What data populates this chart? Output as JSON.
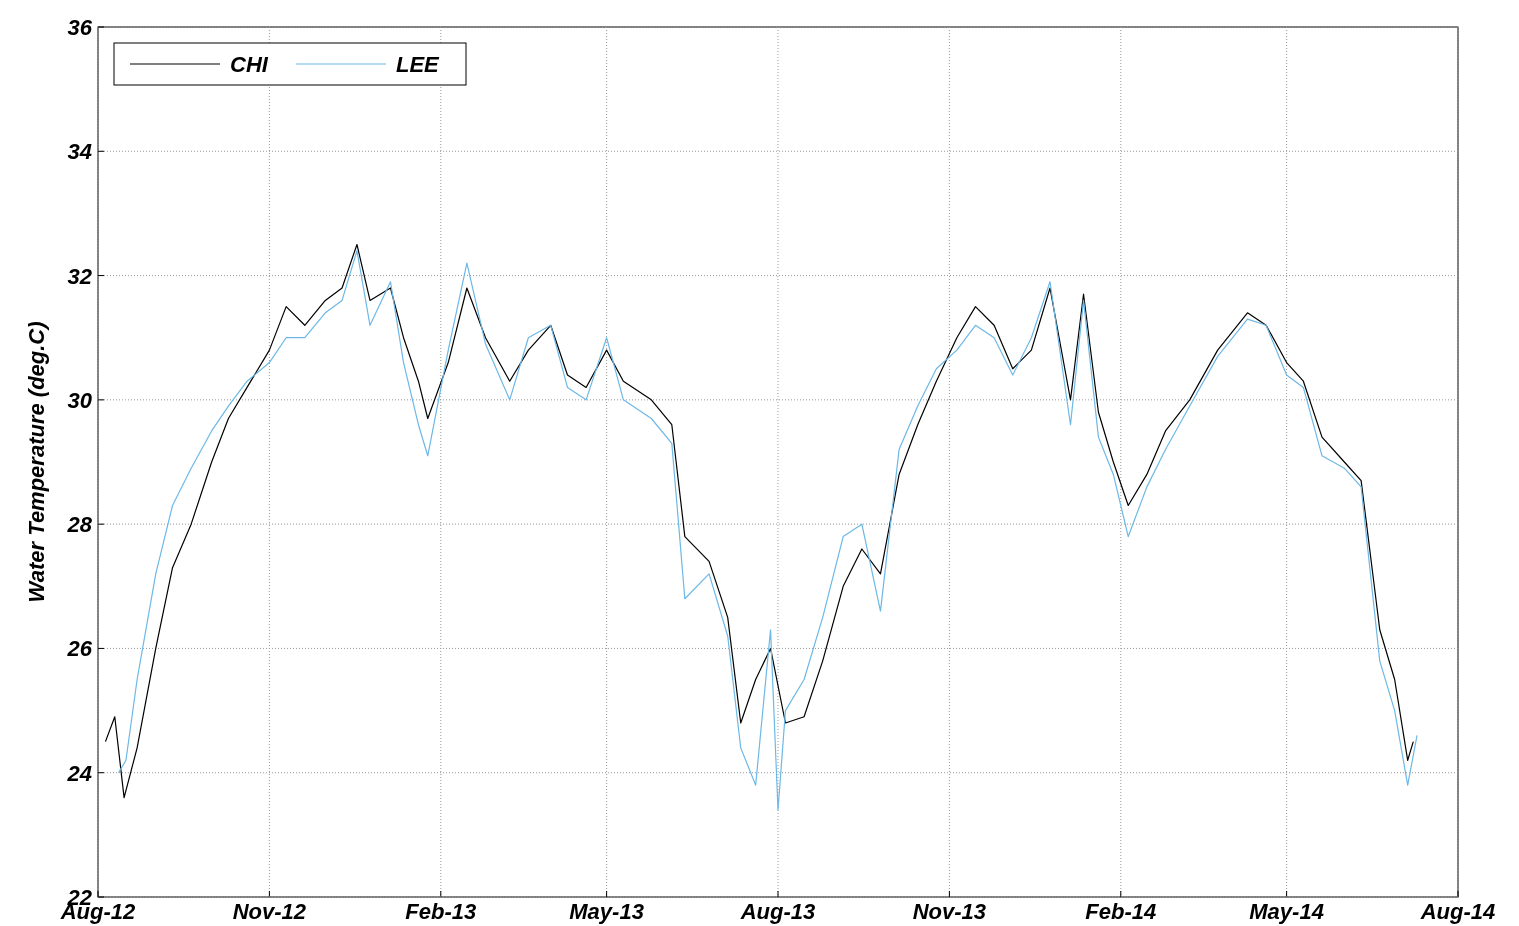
{
  "chart_data": {
    "type": "line",
    "ylabel": "Water Temperature (deg.C)",
    "xlim": [
      "2012-08-01",
      "2014-08-01"
    ],
    "xticks": [
      {
        "value": "2012-08-01",
        "label": "Aug-12"
      },
      {
        "value": "2012-11-01",
        "label": "Nov-12"
      },
      {
        "value": "2013-02-01",
        "label": "Feb-13"
      },
      {
        "value": "2013-05-01",
        "label": "May-13"
      },
      {
        "value": "2013-08-01",
        "label": "Aug-13"
      },
      {
        "value": "2013-11-01",
        "label": "Nov-13"
      },
      {
        "value": "2014-02-01",
        "label": "Feb-14"
      },
      {
        "value": "2014-05-01",
        "label": "May-14"
      },
      {
        "value": "2014-08-01",
        "label": "Aug-14"
      }
    ],
    "ylim": [
      22,
      36
    ],
    "yticks": [
      22,
      24,
      26,
      28,
      30,
      32,
      34,
      36
    ],
    "grid": true,
    "legend": "top left",
    "line_style": "solid",
    "marker": "none",
    "series": [
      {
        "name": "CHI",
        "color": "#000000",
        "x": [
          "2012-08-05",
          "2012-08-10",
          "2012-08-15",
          "2012-08-22",
          "2012-09-01",
          "2012-09-10",
          "2012-09-20",
          "2012-10-01",
          "2012-10-10",
          "2012-10-20",
          "2012-11-01",
          "2012-11-10",
          "2012-11-20",
          "2012-12-01",
          "2012-12-10",
          "2012-12-18",
          "2012-12-25",
          "2013-01-05",
          "2013-01-12",
          "2013-01-20",
          "2013-01-25",
          "2013-02-05",
          "2013-02-15",
          "2013-02-25",
          "2013-03-10",
          "2013-03-20",
          "2013-04-01",
          "2013-04-10",
          "2013-04-20",
          "2013-05-01",
          "2013-05-10",
          "2013-05-25",
          "2013-06-05",
          "2013-06-12",
          "2013-06-25",
          "2013-07-05",
          "2013-07-12",
          "2013-07-20",
          "2013-07-28",
          "2013-08-05",
          "2013-08-15",
          "2013-08-25",
          "2013-09-05",
          "2013-09-15",
          "2013-09-25",
          "2013-10-05",
          "2013-10-15",
          "2013-10-25",
          "2013-11-05",
          "2013-11-15",
          "2013-11-25",
          "2013-12-05",
          "2013-12-15",
          "2013-12-25",
          "2014-01-05",
          "2014-01-12",
          "2014-01-20",
          "2014-01-28",
          "2014-02-05",
          "2014-02-15",
          "2014-02-25",
          "2014-03-10",
          "2014-03-25",
          "2014-04-10",
          "2014-04-20",
          "2014-05-01",
          "2014-05-10",
          "2014-05-20",
          "2014-06-01",
          "2014-06-10",
          "2014-06-20",
          "2014-06-28",
          "2014-07-05",
          "2014-07-08"
        ],
        "values": [
          24.5,
          24.9,
          23.6,
          24.4,
          26.0,
          27.3,
          28.0,
          29.0,
          29.7,
          30.2,
          30.8,
          31.5,
          31.2,
          31.6,
          31.8,
          32.5,
          31.6,
          31.8,
          31.0,
          30.3,
          29.7,
          30.6,
          31.8,
          31.0,
          30.3,
          30.8,
          31.2,
          30.4,
          30.2,
          30.8,
          30.3,
          30.0,
          29.6,
          27.8,
          27.4,
          26.5,
          24.8,
          25.5,
          26.0,
          24.8,
          24.9,
          25.8,
          27.0,
          27.6,
          27.2,
          28.8,
          29.6,
          30.3,
          31.0,
          31.5,
          31.2,
          30.5,
          30.8,
          31.8,
          30.0,
          31.7,
          29.8,
          29.0,
          28.3,
          28.8,
          29.5,
          30.0,
          30.8,
          31.4,
          31.2,
          30.6,
          30.3,
          29.4,
          29.0,
          28.7,
          26.3,
          25.5,
          24.2,
          24.5
        ]
      },
      {
        "name": "LEE",
        "color": "#6cb8e6",
        "x": [
          "2012-08-12",
          "2012-08-16",
          "2012-08-22",
          "2012-09-01",
          "2012-09-10",
          "2012-09-20",
          "2012-10-01",
          "2012-10-10",
          "2012-10-20",
          "2012-11-01",
          "2012-11-10",
          "2012-11-20",
          "2012-12-01",
          "2012-12-10",
          "2012-12-18",
          "2012-12-25",
          "2013-01-05",
          "2013-01-12",
          "2013-01-20",
          "2013-01-25",
          "2013-02-05",
          "2013-02-15",
          "2013-02-25",
          "2013-03-10",
          "2013-03-20",
          "2013-04-01",
          "2013-04-10",
          "2013-04-20",
          "2013-05-01",
          "2013-05-10",
          "2013-05-25",
          "2013-06-05",
          "2013-06-12",
          "2013-06-25",
          "2013-07-05",
          "2013-07-12",
          "2013-07-20",
          "2013-07-28",
          "2013-08-01",
          "2013-08-05",
          "2013-08-15",
          "2013-08-25",
          "2013-09-05",
          "2013-09-15",
          "2013-09-25",
          "2013-10-05",
          "2013-10-15",
          "2013-10-25",
          "2013-11-05",
          "2013-11-15",
          "2013-11-25",
          "2013-12-05",
          "2013-12-15",
          "2013-12-25",
          "2014-01-05",
          "2014-01-12",
          "2014-01-20",
          "2014-01-28",
          "2014-02-05",
          "2014-02-15",
          "2014-02-25",
          "2014-03-10",
          "2014-03-25",
          "2014-04-10",
          "2014-04-20",
          "2014-05-01",
          "2014-05-10",
          "2014-05-20",
          "2014-06-01",
          "2014-06-10",
          "2014-06-20",
          "2014-06-28",
          "2014-07-05",
          "2014-07-10"
        ],
        "values": [
          24.0,
          24.2,
          25.5,
          27.2,
          28.3,
          28.9,
          29.5,
          29.9,
          30.3,
          30.6,
          31.0,
          31.0,
          31.4,
          31.6,
          32.4,
          31.2,
          31.9,
          30.6,
          29.6,
          29.1,
          30.8,
          32.2,
          30.9,
          30.0,
          31.0,
          31.2,
          30.2,
          30.0,
          31.0,
          30.0,
          29.7,
          29.3,
          26.8,
          27.2,
          26.2,
          24.4,
          23.8,
          26.3,
          23.4,
          25.0,
          25.5,
          26.5,
          27.8,
          28.0,
          26.6,
          29.2,
          29.9,
          30.5,
          30.8,
          31.2,
          31.0,
          30.4,
          31.0,
          31.9,
          29.6,
          31.6,
          29.4,
          28.8,
          27.8,
          28.6,
          29.2,
          29.9,
          30.7,
          31.3,
          31.2,
          30.4,
          30.2,
          29.1,
          28.9,
          28.6,
          25.8,
          25.0,
          23.8,
          24.6
        ]
      }
    ]
  }
}
